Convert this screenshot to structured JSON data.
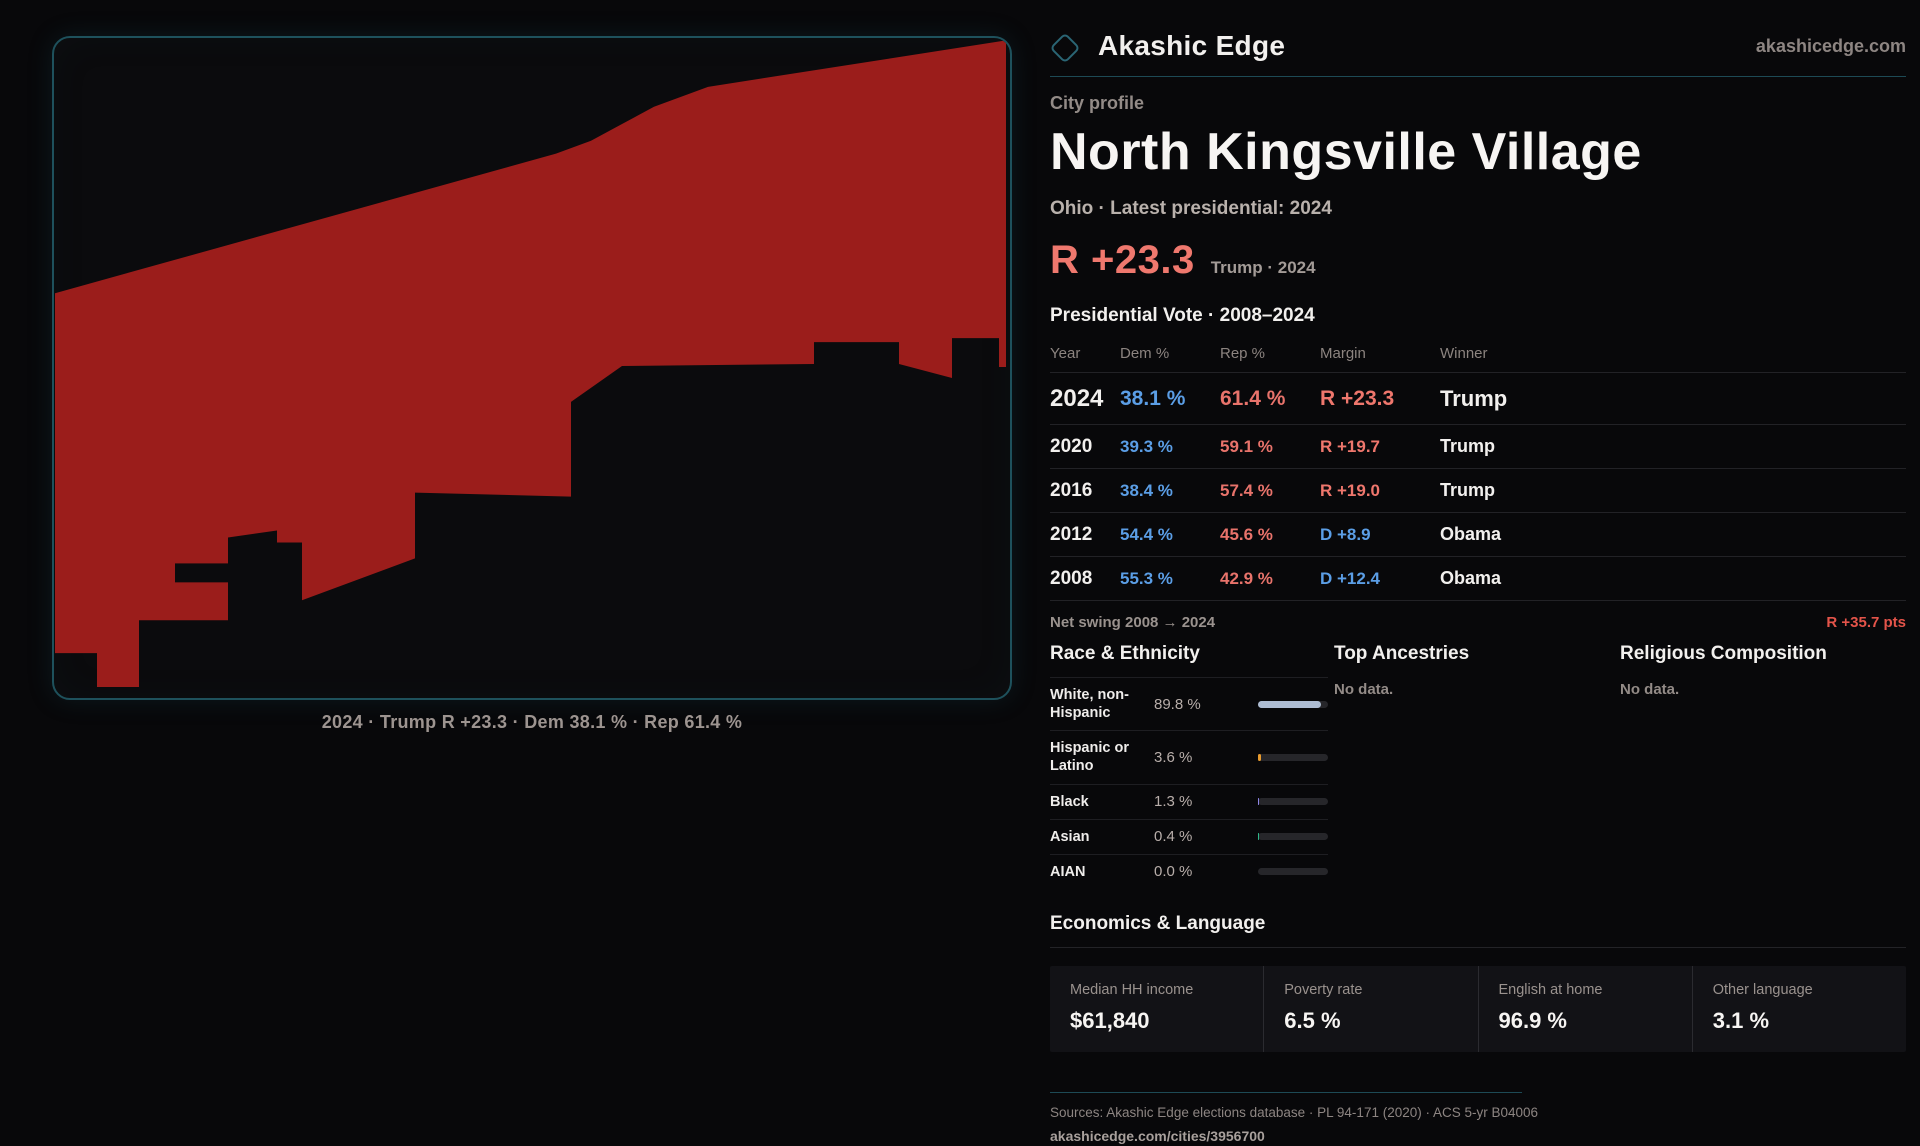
{
  "brand": {
    "name": "Akashic Edge",
    "site": "akashicedge.com"
  },
  "profile": {
    "kicker": "City profile",
    "title": "North Kingsville Village",
    "subtitle": "Ohio · Latest presidential: 2024",
    "headline_margin": "R +23.3",
    "headline_note": "Trump · 2024"
  },
  "map": {
    "caption": "2024 · Trump R +23.3 · Dem 38.1 % · Rep 61.4 %",
    "fill_color": "#9b1d1b",
    "border_color": "#1e515c"
  },
  "vote_table": {
    "title": "Presidential Vote · 2008–2024",
    "columns": {
      "year": "Year",
      "dem": "Dem %",
      "rep": "Rep %",
      "margin": "Margin",
      "winner": "Winner"
    },
    "rows": [
      {
        "year": "2024",
        "dem": "38.1 %",
        "rep": "61.4 %",
        "margin": "R +23.3",
        "winner": "Trump",
        "emphasis": true
      },
      {
        "year": "2020",
        "dem": "39.3 %",
        "rep": "59.1 %",
        "margin": "R +19.7",
        "winner": "Trump",
        "emphasis": false
      },
      {
        "year": "2016",
        "dem": "38.4 %",
        "rep": "57.4 %",
        "margin": "R +19.0",
        "winner": "Trump",
        "emphasis": false
      },
      {
        "year": "2012",
        "dem": "54.4 %",
        "rep": "45.6 %",
        "margin": "D +8.9",
        "winner": "Obama",
        "emphasis": false
      },
      {
        "year": "2008",
        "dem": "55.3 %",
        "rep": "42.9 %",
        "margin": "D +12.4",
        "winner": "Obama",
        "emphasis": false
      }
    ],
    "net_swing_label": "Net swing 2008 → 2024",
    "net_swing_value": "R +35.7 pts"
  },
  "demographics": {
    "race_title": "Race & Ethnicity",
    "ancestries_title": "Top Ancestries",
    "religion_title": "Religious Composition",
    "ancestries_empty": "No data.",
    "religion_empty": "No data.",
    "race_rows": [
      {
        "label": "White, non-Hispanic",
        "value": "89.8 %",
        "pct": 89.8,
        "color": "#aebdd3"
      },
      {
        "label": "Hispanic or Latino",
        "value": "3.6 %",
        "pct": 3.6,
        "color": "#e89b2e"
      },
      {
        "label": "Black",
        "value": "1.3 %",
        "pct": 1.3,
        "color": "#8f86e8"
      },
      {
        "label": "Asian",
        "value": "0.4 %",
        "pct": 0.4,
        "color": "#2eb98a"
      },
      {
        "label": "AIAN",
        "value": "0.0 %",
        "pct": 0.0,
        "color": "#aebdd3"
      }
    ]
  },
  "economics": {
    "title": "Economics & Language",
    "stats": [
      {
        "label": "Median HH income",
        "value": "$61,840"
      },
      {
        "label": "Poverty rate",
        "value": "6.5 %"
      },
      {
        "label": "English at home",
        "value": "96.9 %"
      },
      {
        "label": "Other language",
        "value": "3.1 %"
      }
    ]
  },
  "footer": {
    "sources": "Sources: Akashic Edge elections database · PL 94-171 (2020) · ACS 5-yr B04006",
    "permalink": "akashicedge.com/cities/3956700"
  }
}
